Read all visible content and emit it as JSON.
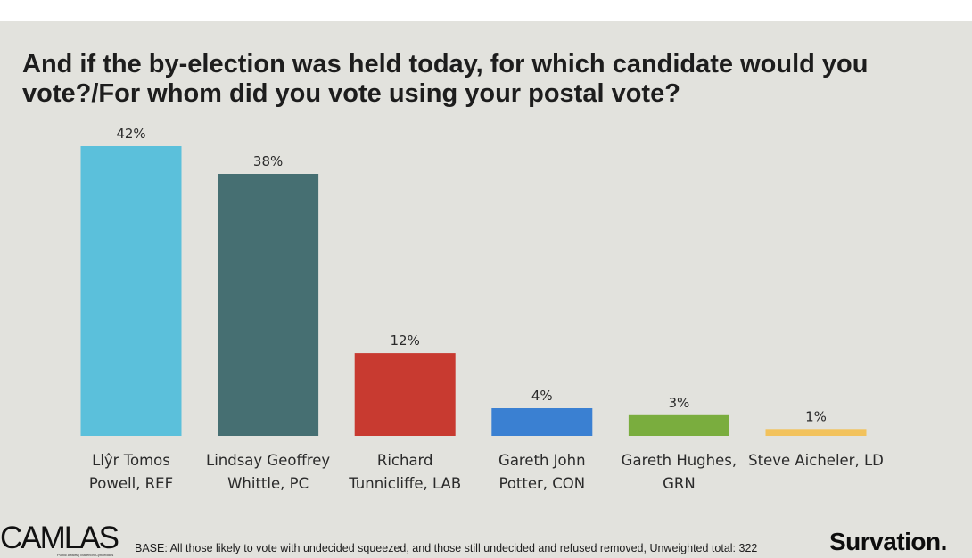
{
  "chart_data": {
    "type": "bar",
    "title": "And if the by-election was held today, for which candidate would you vote?/For whom did you vote using your postal vote?",
    "categories": [
      [
        "Llŷr Tomos",
        "Powell, REF"
      ],
      [
        "Lindsay Geoffrey",
        "Whittle, PC"
      ],
      [
        "Richard",
        "Tunnicliffe, LAB"
      ],
      [
        "Gareth John",
        "Potter, CON"
      ],
      [
        "Gareth Hughes,",
        "GRN"
      ],
      [
        "Steve Aicheler, LD"
      ]
    ],
    "values": [
      42,
      38,
      12,
      4,
      3,
      1
    ],
    "value_labels": [
      "42%",
      "38%",
      "12%",
      "4%",
      "3%",
      "1%"
    ],
    "colors": [
      "#5bc0db",
      "#466f72",
      "#c83a30",
      "#3a80d2",
      "#7aad3e",
      "#f2c25c"
    ],
    "ylim": [
      0,
      42
    ],
    "grid": false,
    "legend": "none"
  },
  "footer": {
    "logo_left": "CAMLAS",
    "logo_left_tagline": "Public Affairs | Materion Cyhoeddus",
    "base_text": "BASE: All those likely to vote with undecided squeezed, and those still undecided and refused removed, Unweighted total: 322",
    "logo_right": "Survation."
  },
  "colors": {
    "panel_background": "#e2e2dd",
    "text": "#2a2a2a"
  }
}
